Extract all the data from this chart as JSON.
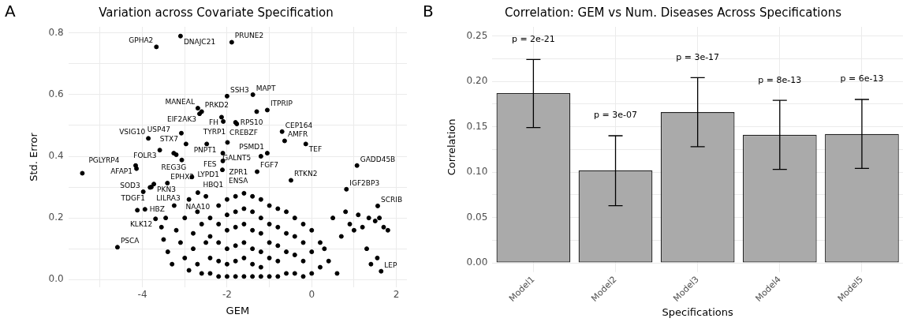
{
  "chart_data": [
    {
      "type": "scatter",
      "title": "Variation across Covariate Specification",
      "xlabel": "GEM",
      "ylabel": "Std. Error",
      "x": [
        -3.1,
        -3.67,
        -1.89,
        -2.0,
        -1.39,
        -1.05,
        -1.3,
        -2.69,
        -2.65,
        -2.6,
        -2.13,
        -2.09,
        -1.8,
        -1.77,
        -0.7,
        -0.64,
        -0.14,
        -1.05,
        -1.2,
        -1.99,
        1.07,
        -3.08,
        -2.97,
        -3.86,
        -2.48,
        -3.59,
        -3.26,
        -3.2,
        -2.1,
        -3.07,
        -2.1,
        -1.29,
        -4.16,
        -4.14,
        -5.42,
        -3.73,
        -3.79,
        -3.98,
        -3.82,
        -3.41,
        -2.83,
        -2.11,
        -2.69,
        -3.94,
        -4.12,
        -3.69,
        -4.59,
        -0.49,
        0.82,
        1.56,
        1.64,
        -3.5,
        -3.4,
        -3.3,
        -3.2,
        -3.1,
        -3.0,
        -3.0,
        -2.9,
        -2.9,
        -2.8,
        -2.8,
        -2.7,
        -2.7,
        -2.6,
        -2.6,
        -2.5,
        -2.5,
        -3.55,
        -3.45,
        -3.25,
        -2.4,
        -2.4,
        -2.4,
        -2.4,
        -2.2,
        -2.2,
        -2.2,
        -2.2,
        -2.2,
        -2.0,
        -2.0,
        -2.0,
        -2.0,
        -2.0,
        -2.0,
        -1.8,
        -1.8,
        -1.8,
        -1.8,
        -1.8,
        -1.8,
        -1.6,
        -1.6,
        -1.6,
        -1.6,
        -1.6,
        -1.6,
        -1.4,
        -1.4,
        -1.4,
        -1.4,
        -1.4,
        -1.4,
        -1.2,
        -1.2,
        -1.2,
        -1.2,
        -1.2,
        -1.2,
        -1.0,
        -1.0,
        -1.0,
        -1.0,
        -1.0,
        -0.8,
        -0.8,
        -0.8,
        -0.8,
        -0.8,
        -0.6,
        -0.6,
        -0.6,
        -0.6,
        -0.4,
        -0.4,
        -0.4,
        -0.4,
        -0.2,
        -0.2,
        -0.2,
        -0.2,
        0.0,
        0.0,
        0.0,
        0.2,
        0.2,
        0.3,
        0.4,
        0.5,
        0.6,
        0.7,
        0.8,
        0.9,
        1.0,
        1.1,
        1.2,
        1.3,
        1.4,
        1.5,
        1.6,
        1.7,
        1.8,
        1.35,
        1.55
      ],
      "series": [
        {
          "color": "#000000",
          "values": [
            0.79,
            0.755,
            0.77,
            0.595,
            0.6,
            0.55,
            0.545,
            0.556,
            0.538,
            0.545,
            0.527,
            0.513,
            0.51,
            0.505,
            0.48,
            0.45,
            0.44,
            0.41,
            0.4,
            0.445,
            0.37,
            0.475,
            0.44,
            0.458,
            0.44,
            0.42,
            0.41,
            0.405,
            0.41,
            0.388,
            0.385,
            0.35,
            0.37,
            0.36,
            0.345,
            0.31,
            0.3,
            0.285,
            0.299,
            0.313,
            0.333,
            0.356,
            0.282,
            0.228,
            0.225,
            0.197,
            0.105,
            0.322,
            0.293,
            0.239,
            0.027,
            0.13,
            0.09,
            0.05,
            0.16,
            0.12,
            0.2,
            0.07,
            0.03,
            0.26,
            0.15,
            0.1,
            0.22,
            0.05,
            0.18,
            0.02,
            0.27,
            0.12,
            0.17,
            0.2,
            0.24,
            0.2,
            0.14,
            0.07,
            0.02,
            0.24,
            0.18,
            0.12,
            0.06,
            0.01,
            0.26,
            0.21,
            0.16,
            0.1,
            0.05,
            0.01,
            0.27,
            0.22,
            0.17,
            0.11,
            0.06,
            0.01,
            0.28,
            0.23,
            0.18,
            0.12,
            0.07,
            0.01,
            0.27,
            0.22,
            0.16,
            0.1,
            0.05,
            0.01,
            0.26,
            0.2,
            0.15,
            0.09,
            0.04,
            0.01,
            0.24,
            0.18,
            0.12,
            0.07,
            0.01,
            0.23,
            0.17,
            0.11,
            0.06,
            0.01,
            0.22,
            0.15,
            0.09,
            0.02,
            0.2,
            0.14,
            0.08,
            0.02,
            0.18,
            0.12,
            0.06,
            0.01,
            0.16,
            0.09,
            0.02,
            0.12,
            0.04,
            0.1,
            0.06,
            0.2,
            0.02,
            0.14,
            0.22,
            0.18,
            0.16,
            0.21,
            0.17,
            0.1,
            0.05,
            0.19,
            0.2,
            0.17,
            0.16,
            0.2,
            0.07
          ]
        }
      ],
      "annotations": [
        "A",
        {
          "text": "DNAJC21",
          "x": -3.1,
          "y": 0.79
        },
        {
          "text": "GPHA2",
          "x": -3.67,
          "y": 0.755
        },
        {
          "text": "PRUNE2",
          "x": -1.89,
          "y": 0.77
        },
        {
          "text": "SSH3",
          "x": -2.0,
          "y": 0.595
        },
        {
          "text": "MAPT",
          "x": -1.39,
          "y": 0.6
        },
        {
          "text": "ITPRIP",
          "x": -1.05,
          "y": 0.55
        },
        {
          "text": "MANEAL",
          "x": -2.69,
          "y": 0.556
        },
        {
          "text": "EIF2AK3",
          "x": -2.65,
          "y": 0.538
        },
        {
          "text": "PRKD2",
          "x": -2.6,
          "y": 0.545
        },
        {
          "text": "FH",
          "x": -2.13,
          "y": 0.527
        },
        {
          "text": "CREBZF",
          "x": -2.09,
          "y": 0.513
        },
        {
          "text": "RPS10",
          "x": -1.8,
          "y": 0.51
        },
        {
          "text": "TYRP1",
          "x": -1.77,
          "y": 0.505
        },
        {
          "text": "CEP164",
          "x": -0.7,
          "y": 0.48
        },
        {
          "text": "AMFR",
          "x": -0.64,
          "y": 0.45
        },
        {
          "text": "TEF",
          "x": -0.14,
          "y": 0.44
        },
        {
          "text": "PSMD1",
          "x": -1.05,
          "y": 0.41
        },
        {
          "text": "PNPT1",
          "x": -1.99,
          "y": 0.445
        },
        {
          "text": "GADD45B",
          "x": 1.07,
          "y": 0.37
        },
        {
          "text": "STX7",
          "x": -3.08,
          "y": 0.475
        },
        {
          "text": "USP47",
          "x": -2.97,
          "y": 0.44
        },
        {
          "text": "VSIG10",
          "x": -3.86,
          "y": 0.458
        },
        {
          "text": "GALNT5",
          "x": -2.48,
          "y": 0.44
        },
        {
          "text": "FOLR3",
          "x": -3.59,
          "y": 0.42
        },
        {
          "text": "REG3G",
          "x": -3.26,
          "y": 0.41
        },
        {
          "text": "FES",
          "x": -2.1,
          "y": 0.41
        },
        {
          "text": "LYPD1",
          "x": -3.07,
          "y": 0.388
        },
        {
          "text": "ZPR1",
          "x": -2.1,
          "y": 0.385
        },
        {
          "text": "FGF7",
          "x": -1.29,
          "y": 0.35
        },
        {
          "text": "AFAP1",
          "x": -4.16,
          "y": 0.37
        },
        {
          "text": "PGLYRP4",
          "x": -5.42,
          "y": 0.345
        },
        {
          "text": "PKN3",
          "x": -3.73,
          "y": 0.31
        },
        {
          "text": "TDGF1",
          "x": -3.79,
          "y": 0.3
        },
        {
          "text": "SOD3",
          "x": -3.98,
          "y": 0.285
        },
        {
          "text": "LILRA3",
          "x": -3.82,
          "y": 0.299
        },
        {
          "text": "EPHX2",
          "x": -3.41,
          "y": 0.313
        },
        {
          "text": "HBQ1",
          "x": -2.83,
          "y": 0.333
        },
        {
          "text": "ENSA",
          "x": -2.11,
          "y": 0.356
        },
        {
          "text": "NAA10",
          "x": -2.69,
          "y": 0.282
        },
        {
          "text": "HBZ",
          "x": -3.94,
          "y": 0.228
        },
        {
          "text": "KLK12",
          "x": -3.69,
          "y": 0.197
        },
        {
          "text": "PSCA",
          "x": -4.59,
          "y": 0.105
        },
        {
          "text": "RTKN2",
          "x": -0.49,
          "y": 0.322
        },
        {
          "text": "IGF2BP3",
          "x": 0.82,
          "y": 0.293
        },
        {
          "text": "SCRIB",
          "x": 1.56,
          "y": 0.239
        },
        {
          "text": "LEP",
          "x": 1.64,
          "y": 0.027
        }
      ],
      "xlim": [
        -5.75,
        2.25
      ],
      "ylim": [
        -0.025,
        0.82
      ],
      "xticks": [
        {
          "value": -5,
          "label": null
        },
        -4,
        {
          "value": -3,
          "label": null
        },
        -2,
        {
          "value": -1,
          "label": null
        },
        0,
        {
          "value": 1,
          "label": null
        },
        2
      ],
      "yticks": [
        {
          "value": 0,
          "label": "0.0"
        },
        {
          "value": 0.1,
          "label": null
        },
        0.2,
        {
          "value": 0.3,
          "label": null
        },
        0.4,
        {
          "value": 0.5,
          "label": null
        },
        0.6,
        {
          "value": 0.7,
          "label": null
        },
        0.8
      ],
      "grid": true,
      "legend": false,
      "marker": "circle"
    },
    {
      "type": "bar",
      "title": "Correlation: GEM vs Num. Diseases Across Specifications",
      "xlabel": "Specifications",
      "ylabel": "Correlation",
      "categories": [
        "Model1",
        "Model2",
        "Model3",
        "Model4",
        "Model5"
      ],
      "series": [
        {
          "color": "#aaaaaa",
          "values": [
            0.187,
            0.102,
            0.166,
            0.141,
            0.142
          ],
          "errors": [
            [
              0.149,
              0.224
            ],
            [
              0.063,
              0.14
            ],
            [
              0.128,
              0.204
            ],
            [
              0.103,
              0.179
            ],
            [
              0.104,
              0.18
            ]
          ]
        }
      ],
      "annotations": [
        "B",
        "p = 2e-21",
        "p = 3e-07",
        "p = 3e-17",
        "p = 8e-13",
        "p = 6e-13"
      ],
      "ylim": [
        -0.005,
        0.26
      ],
      "yticks": [
        {
          "value": 0,
          "label": "0.00"
        },
        {
          "value": 0.025,
          "label": null
        },
        {
          "value": 0.05,
          "label": "0.05"
        },
        {
          "value": 0.075,
          "label": null
        },
        {
          "value": 0.1,
          "label": "0.10"
        },
        {
          "value": 0.125,
          "label": null
        },
        {
          "value": 0.15,
          "label": "0.15"
        },
        {
          "value": 0.175,
          "label": null
        },
        {
          "value": 0.2,
          "label": "0.20"
        },
        {
          "value": 0.225,
          "label": null
        },
        {
          "value": 0.25,
          "label": "0.25"
        }
      ],
      "grid": true,
      "legend": false
    }
  ]
}
